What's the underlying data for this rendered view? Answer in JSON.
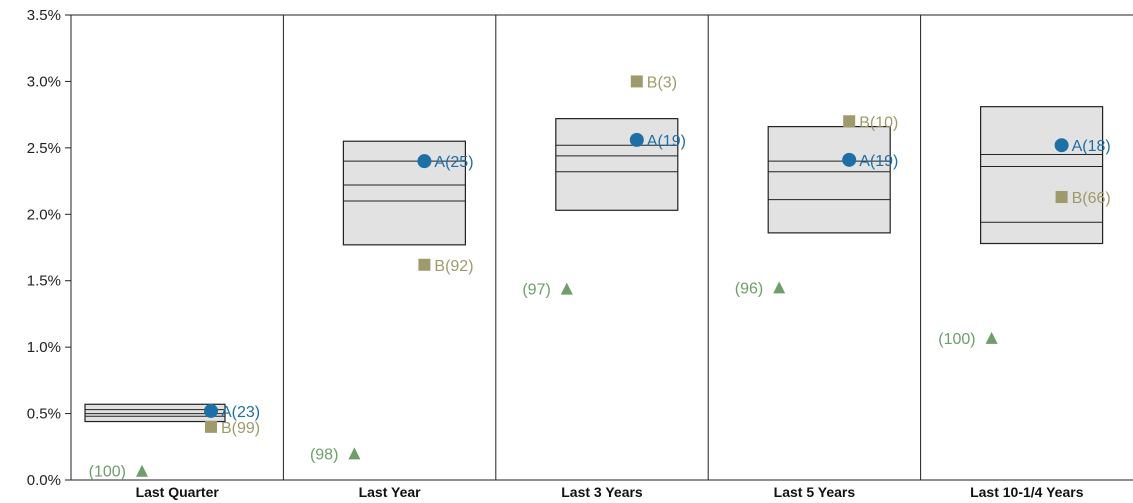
{
  "colors": {
    "fund_a": "#1e6fa5",
    "fund_b": "#9e9a6b",
    "index": "#6e9e6a",
    "box_fill": "#e2e2e2",
    "box_stroke": "#222222",
    "axis": "#222222"
  },
  "chart_data": {
    "type": "box-range",
    "y_tick_labels": [
      "0.0%",
      "0.5%",
      "1.0%",
      "1.5%",
      "2.0%",
      "2.5%",
      "3.0%",
      "3.5%"
    ],
    "ylim": [
      0,
      3.5
    ],
    "grid": false,
    "categories": [
      {
        "label": "Last Quarter",
        "box": {
          "min": 0.44,
          "q1": 0.48,
          "median": 0.5,
          "q3": 0.53,
          "max": 0.57
        },
        "a": {
          "value": 0.52,
          "label": "A(23)"
        },
        "b": {
          "value": 0.4,
          "label": "B(99)"
        },
        "c": {
          "value": 0.07,
          "label": "(100)"
        }
      },
      {
        "label": "Last Year",
        "box": {
          "min": 1.77,
          "q1": 2.1,
          "median": 2.22,
          "q3": 2.4,
          "max": 2.55
        },
        "a": {
          "value": 2.4,
          "label": "A(25)"
        },
        "b": {
          "value": 1.62,
          "label": "B(92)"
        },
        "c": {
          "value": 0.2,
          "label": "(98)"
        }
      },
      {
        "label": "Last 3 Years",
        "box": {
          "min": 2.03,
          "q1": 2.32,
          "median": 2.44,
          "q3": 2.52,
          "max": 2.72
        },
        "a": {
          "value": 2.56,
          "label": "A(19)"
        },
        "b": {
          "value": 3.0,
          "label": "B(3)"
        },
        "c": {
          "value": 1.44,
          "label": "(97)"
        }
      },
      {
        "label": "Last 5 Years",
        "box": {
          "min": 1.86,
          "q1": 2.11,
          "median": 2.32,
          "q3": 2.4,
          "max": 2.66
        },
        "a": {
          "value": 2.41,
          "label": "A(19)"
        },
        "b": {
          "value": 2.7,
          "label": "B(10)"
        },
        "c": {
          "value": 1.45,
          "label": "(96)"
        }
      },
      {
        "label": "Last 10-1/4 Years",
        "box": {
          "min": 1.78,
          "q1": 1.94,
          "median": 2.36,
          "q3": 2.45,
          "max": 2.81
        },
        "a": {
          "value": 2.52,
          "label": "A(18)"
        },
        "b": {
          "value": 2.13,
          "label": "B(66)"
        },
        "c": {
          "value": 1.07,
          "label": "(100)"
        }
      }
    ]
  }
}
